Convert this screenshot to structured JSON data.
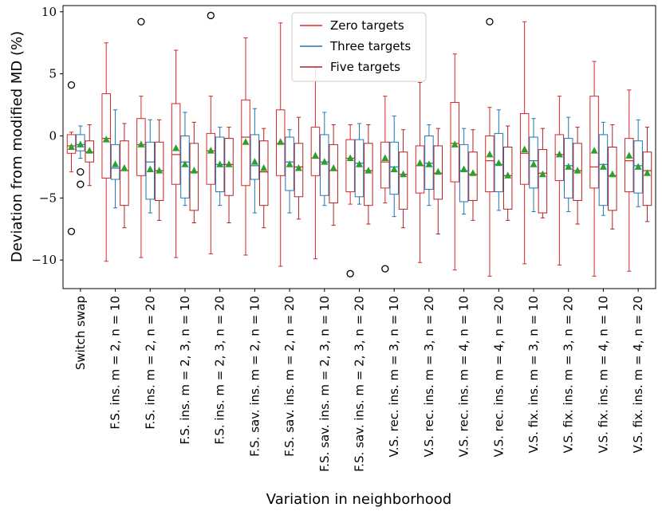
{
  "chart_data": {
    "type": "box",
    "title": "",
    "xlabel": "Variation in neighborhood",
    "ylabel": "Deviation from modified MD (%)",
    "ylim": [
      -12.3,
      10.5
    ],
    "yticks": [
      -10,
      -5,
      0,
      5,
      10
    ],
    "ytick_labels": [
      "−10",
      "−5",
      "0",
      "5",
      "10"
    ],
    "grid": false,
    "legend_position": "top-center",
    "categories": [
      "Switch swap",
      "F.S. ins. m = 2, n = 10",
      "F.S. ins. m = 2, n = 20",
      "F.S. ins. m = 2, 3, n = 10",
      "F.S. ins. m = 2, 3, n = 20",
      "F.S. sav. ins. m = 2, n = 10",
      "F.S. sav. ins. m = 2, n = 20",
      "F.S. sav. ins. m = 2, 3, n = 10",
      "F.S. sav. ins. m = 2, 3, n = 20",
      "V.S. rec. ins. m = 3, n = 10",
      "V.S. rec. ins. m = 3, n = 20",
      "V.S. rec. ins. m = 4, n = 10",
      "V.S. rec. ins. m = 4, n = 20",
      "V.S. fix. ins. m = 3, n = 10",
      "V.S. fix. ins. m = 3, n = 20",
      "V.S. fix. ins. m = 4, n = 10",
      "V.S. fix. ins. m = 4, n = 20"
    ],
    "series": [
      {
        "name": "Zero targets",
        "color": "#d62728",
        "boxes": [
          {
            "whislo": -2.9,
            "q1": -1.4,
            "med": -0.8,
            "q3": 0.1,
            "whishi": 0.3,
            "mean": -0.9,
            "fliers": [
              4.1,
              -7.7
            ]
          },
          {
            "whislo": -10.1,
            "q1": -3.4,
            "med": -0.2,
            "q3": 3.4,
            "whishi": 7.5,
            "mean": -0.3,
            "fliers": []
          },
          {
            "whislo": -9.8,
            "q1": -3.2,
            "med": -0.7,
            "q3": 1.4,
            "whishi": 3.2,
            "mean": -0.7,
            "fliers": [
              9.2
            ]
          },
          {
            "whislo": -9.8,
            "q1": -3.9,
            "med": -1.5,
            "q3": 2.6,
            "whishi": 6.9,
            "mean": -1.0,
            "fliers": []
          },
          {
            "whislo": -9.5,
            "q1": -3.9,
            "med": -1.2,
            "q3": 0.2,
            "whishi": 3.2,
            "mean": -1.2,
            "fliers": [
              9.7
            ]
          },
          {
            "whislo": -9.6,
            "q1": -4.0,
            "med": -0.1,
            "q3": 2.9,
            "whishi": 7.9,
            "mean": -0.5,
            "fliers": []
          },
          {
            "whislo": -10.5,
            "q1": -3.2,
            "med": -0.6,
            "q3": 2.1,
            "whishi": 9.1,
            "mean": -0.5,
            "fliers": []
          },
          {
            "whislo": -9.9,
            "q1": -3.2,
            "med": -1.8,
            "q3": 0.7,
            "whishi": 5.5,
            "mean": -1.6,
            "fliers": []
          },
          {
            "whislo": -5.5,
            "q1": -4.5,
            "med": -1.8,
            "q3": -0.3,
            "whishi": 0.9,
            "mean": -1.8,
            "fliers": [
              -11.1
            ]
          },
          {
            "whislo": -5.4,
            "q1": -4.2,
            "med": -2.1,
            "q3": -0.5,
            "whishi": 3.2,
            "mean": -1.8,
            "fliers": [
              -10.7
            ]
          },
          {
            "whislo": -10.2,
            "q1": -4.6,
            "med": -2.4,
            "q3": -0.8,
            "whishi": 4.3,
            "mean": -2.2,
            "fliers": []
          },
          {
            "whislo": -10.8,
            "q1": -3.7,
            "med": -0.6,
            "q3": 2.7,
            "whishi": 6.6,
            "mean": -0.7,
            "fliers": []
          },
          {
            "whislo": -11.3,
            "q1": -4.5,
            "med": -2.0,
            "q3": 0.0,
            "whishi": 2.3,
            "mean": -1.5,
            "fliers": [
              9.2
            ]
          },
          {
            "whislo": -10.3,
            "q1": -3.9,
            "med": -1.4,
            "q3": 1.8,
            "whishi": 9.2,
            "mean": -1.1,
            "fliers": []
          },
          {
            "whislo": -10.4,
            "q1": -3.6,
            "med": -1.5,
            "q3": 0.1,
            "whishi": 3.2,
            "mean": -1.5,
            "fliers": []
          },
          {
            "whislo": -11.3,
            "q1": -4.2,
            "med": -2.5,
            "q3": 3.2,
            "whishi": 6.0,
            "mean": -1.2,
            "fliers": []
          },
          {
            "whislo": -10.9,
            "q1": -4.5,
            "med": -2.0,
            "q3": -0.2,
            "whishi": 3.7,
            "mean": -1.6,
            "fliers": []
          }
        ]
      },
      {
        "name": "Three targets",
        "color": "#1f77b4",
        "boxes": [
          {
            "whislo": -1.8,
            "q1": -1.2,
            "med": -0.7,
            "q3": 0.1,
            "whishi": 0.8,
            "mean": -0.7,
            "fliers": [
              -2.9,
              -3.9
            ]
          },
          {
            "whislo": -5.8,
            "q1": -3.5,
            "med": -2.6,
            "q3": -0.7,
            "whishi": 2.1,
            "mean": -2.3,
            "fliers": []
          },
          {
            "whislo": -6.2,
            "q1": -5.1,
            "med": -2.1,
            "q3": -0.5,
            "whishi": 1.3,
            "mean": -2.7,
            "fliers": []
          },
          {
            "whislo": -5.6,
            "q1": -5.0,
            "med": -2.1,
            "q3": 0.0,
            "whishi": 1.9,
            "mean": -2.3,
            "fliers": []
          },
          {
            "whislo": -5.6,
            "q1": -4.5,
            "med": -2.3,
            "q3": -0.1,
            "whishi": 0.7,
            "mean": -2.3,
            "fliers": []
          },
          {
            "whislo": -6.2,
            "q1": -3.5,
            "med": -2.4,
            "q3": 0.1,
            "whishi": 2.2,
            "mean": -2.1,
            "fliers": []
          },
          {
            "whislo": -6.2,
            "q1": -4.4,
            "med": -2.1,
            "q3": -0.1,
            "whishi": 0.5,
            "mean": -2.3,
            "fliers": []
          },
          {
            "whislo": -5.6,
            "q1": -4.8,
            "med": -2.1,
            "q3": 0.1,
            "whishi": 1.9,
            "mean": -2.1,
            "fliers": []
          },
          {
            "whislo": -5.5,
            "q1": -4.9,
            "med": -2.2,
            "q3": -0.3,
            "whishi": 1.0,
            "mean": -2.3,
            "fliers": []
          },
          {
            "whislo": -6.5,
            "q1": -4.7,
            "med": -2.5,
            "q3": -0.5,
            "whishi": 1.6,
            "mean": -2.7,
            "fliers": []
          },
          {
            "whislo": -5.6,
            "q1": -4.3,
            "med": -2.2,
            "q3": 0.0,
            "whishi": 0.9,
            "mean": -2.3,
            "fliers": []
          },
          {
            "whislo": -6.3,
            "q1": -5.3,
            "med": -2.8,
            "q3": -0.7,
            "whishi": 0.6,
            "mean": -2.7,
            "fliers": []
          },
          {
            "whislo": -6.0,
            "q1": -4.5,
            "med": -2.3,
            "q3": 0.2,
            "whishi": 2.1,
            "mean": -2.2,
            "fliers": []
          },
          {
            "whislo": -6.1,
            "q1": -4.2,
            "med": -2.0,
            "q3": -0.1,
            "whishi": 1.4,
            "mean": -2.3,
            "fliers": []
          },
          {
            "whislo": -6.1,
            "q1": -5.0,
            "med": -2.4,
            "q3": -0.2,
            "whishi": 1.5,
            "mean": -2.5,
            "fliers": []
          },
          {
            "whislo": -6.4,
            "q1": -5.6,
            "med": -2.3,
            "q3": 0.1,
            "whishi": 1.1,
            "mean": -2.5,
            "fliers": []
          },
          {
            "whislo": -5.7,
            "q1": -4.6,
            "med": -2.4,
            "q3": -0.4,
            "whishi": 1.3,
            "mean": -2.5,
            "fliers": []
          }
        ]
      },
      {
        "name": "Five targets",
        "color": "#b22222",
        "boxes": [
          {
            "whislo": -4.0,
            "q1": -2.1,
            "med": -1.3,
            "q3": -0.4,
            "whishi": 0.9,
            "mean": -1.2,
            "fliers": []
          },
          {
            "whislo": -7.4,
            "q1": -5.6,
            "med": -2.8,
            "q3": -0.4,
            "whishi": 1.0,
            "mean": -2.6,
            "fliers": []
          },
          {
            "whislo": -6.8,
            "q1": -5.2,
            "med": -2.8,
            "q3": -0.5,
            "whishi": 1.3,
            "mean": -2.8,
            "fliers": []
          },
          {
            "whislo": -7.0,
            "q1": -6.0,
            "med": -2.9,
            "q3": -0.6,
            "whishi": 1.1,
            "mean": -2.8,
            "fliers": []
          },
          {
            "whislo": -7.0,
            "q1": -4.8,
            "med": -2.3,
            "q3": -0.2,
            "whishi": 0.7,
            "mean": -2.3,
            "fliers": []
          },
          {
            "whislo": -7.4,
            "q1": -5.6,
            "med": -2.9,
            "q3": -0.4,
            "whishi": 0.6,
            "mean": -2.6,
            "fliers": []
          },
          {
            "whislo": -6.7,
            "q1": -4.9,
            "med": -2.5,
            "q3": -0.6,
            "whishi": 1.5,
            "mean": -2.6,
            "fliers": []
          },
          {
            "whislo": -7.2,
            "q1": -5.4,
            "med": -2.8,
            "q3": -0.7,
            "whishi": 0.9,
            "mean": -2.6,
            "fliers": []
          },
          {
            "whislo": -7.1,
            "q1": -5.6,
            "med": -2.8,
            "q3": -0.6,
            "whishi": 0.9,
            "mean": -2.8,
            "fliers": []
          },
          {
            "whislo": -7.4,
            "q1": -5.9,
            "med": -3.1,
            "q3": -1.3,
            "whishi": 0.5,
            "mean": -3.1,
            "fliers": []
          },
          {
            "whislo": -7.9,
            "q1": -5.1,
            "med": -3.0,
            "q3": -0.8,
            "whishi": 0.6,
            "mean": -2.9,
            "fliers": []
          },
          {
            "whislo": -6.8,
            "q1": -5.2,
            "med": -3.1,
            "q3": -1.3,
            "whishi": 0.5,
            "mean": -3.0,
            "fliers": []
          },
          {
            "whislo": -6.8,
            "q1": -5.9,
            "med": -3.2,
            "q3": -0.9,
            "whishi": 0.8,
            "mean": -3.2,
            "fliers": []
          },
          {
            "whislo": -6.6,
            "q1": -6.2,
            "med": -3.0,
            "q3": -1.1,
            "whishi": 0.6,
            "mean": -3.1,
            "fliers": []
          },
          {
            "whislo": -7.1,
            "q1": -5.2,
            "med": -2.8,
            "q3": -0.6,
            "whishi": 0.7,
            "mean": -2.8,
            "fliers": []
          },
          {
            "whislo": -7.5,
            "q1": -6.0,
            "med": -3.2,
            "q3": -0.9,
            "whishi": 0.9,
            "mean": -3.1,
            "fliers": []
          },
          {
            "whislo": -6.9,
            "q1": -5.6,
            "med": -2.8,
            "q3": -1.3,
            "whishi": 0.7,
            "mean": -3.0,
            "fliers": []
          }
        ]
      }
    ],
    "mean_marker": {
      "shape": "triangle-up",
      "color": "#2ca02c"
    },
    "flier_marker": {
      "shape": "circle",
      "color": "#000000"
    }
  }
}
